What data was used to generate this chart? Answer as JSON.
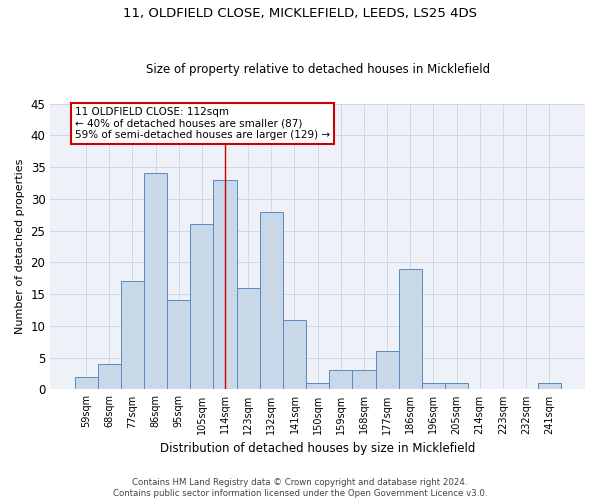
{
  "title1": "11, OLDFIELD CLOSE, MICKLEFIELD, LEEDS, LS25 4DS",
  "title2": "Size of property relative to detached houses in Micklefield",
  "xlabel": "Distribution of detached houses by size in Micklefield",
  "ylabel": "Number of detached properties",
  "categories": [
    "59sqm",
    "68sqm",
    "77sqm",
    "86sqm",
    "95sqm",
    "105sqm",
    "114sqm",
    "123sqm",
    "132sqm",
    "141sqm",
    "150sqm",
    "159sqm",
    "168sqm",
    "177sqm",
    "186sqm",
    "196sqm",
    "205sqm",
    "214sqm",
    "223sqm",
    "232sqm",
    "241sqm"
  ],
  "values": [
    2,
    4,
    17,
    34,
    14,
    26,
    33,
    16,
    28,
    11,
    1,
    3,
    3,
    6,
    19,
    1,
    1,
    0,
    0,
    0,
    1
  ],
  "bar_color": "#c8d8e8",
  "bar_edge_color": "#5a8abf",
  "highlight_index": 6,
  "vline_color": "#cc0000",
  "annotation_line1": "11 OLDFIELD CLOSE: 112sqm",
  "annotation_line2": "← 40% of detached houses are smaller (87)",
  "annotation_line3": "59% of semi-detached houses are larger (129) →",
  "annotation_box_color": "#ffffff",
  "annotation_box_edge": "#cc0000",
  "ylim": [
    0,
    45
  ],
  "yticks": [
    0,
    5,
    10,
    15,
    20,
    25,
    30,
    35,
    40,
    45
  ],
  "grid_color": "#cdd8e8",
  "background_color": "#eef2f8",
  "footer1": "Contains HM Land Registry data © Crown copyright and database right 2024.",
  "footer2": "Contains public sector information licensed under the Open Government Licence v3.0."
}
